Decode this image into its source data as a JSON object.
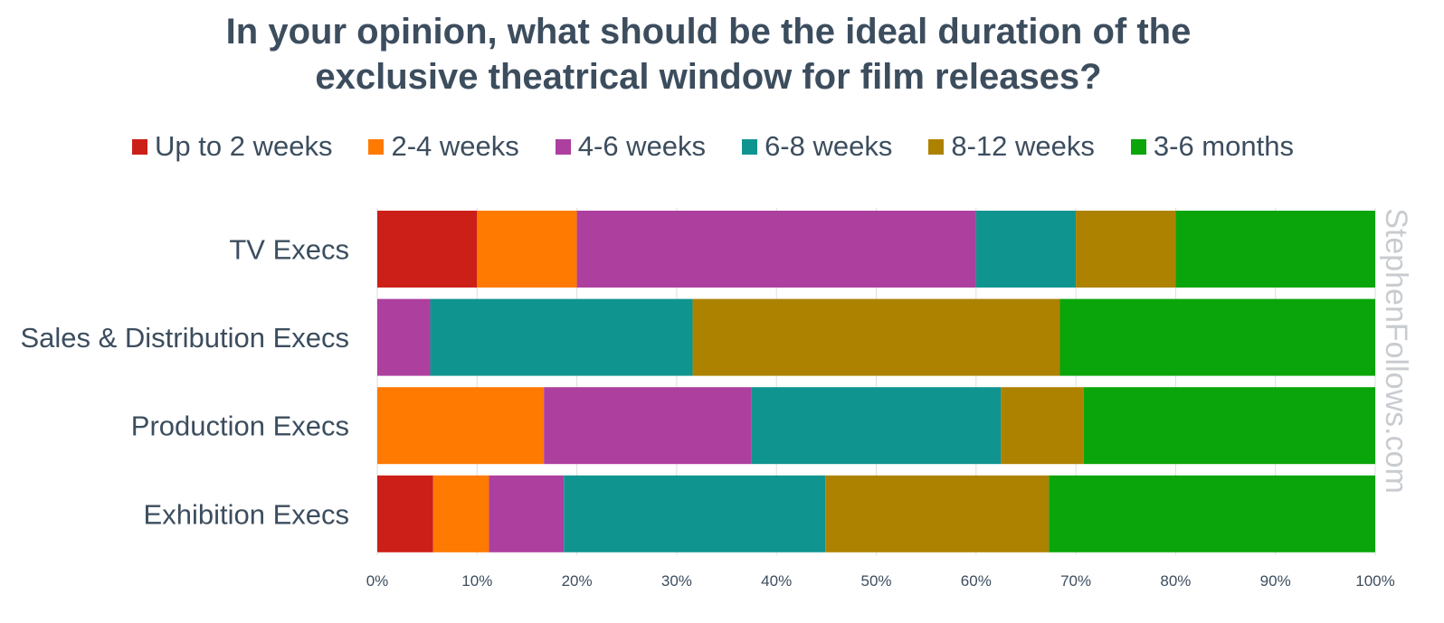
{
  "chart_data": {
    "type": "bar",
    "orientation": "horizontal",
    "stacked": true,
    "title_lines": [
      "In your opinion, what should be the ideal duration of the",
      "exclusive theatrical window for film releases?"
    ],
    "categories": [
      "TV Execs",
      "Sales & Distribution Execs",
      "Production Execs",
      "Exhibition Execs"
    ],
    "series": [
      {
        "name": "Up to 2 weeks",
        "color": "#cc1f18",
        "values": [
          10,
          0,
          0,
          5.6
        ]
      },
      {
        "name": "2-4 weeks",
        "color": "#ff7a00",
        "values": [
          10,
          0,
          16.7,
          5.6
        ]
      },
      {
        "name": "4-6 weeks",
        "color": "#ad3f9e",
        "values": [
          40,
          5.3,
          20.8,
          7.5
        ]
      },
      {
        "name": "6-8 weeks",
        "color": "#10948f",
        "values": [
          10,
          26.3,
          25,
          26.2
        ]
      },
      {
        "name": "8-12 weeks",
        "color": "#ad8200",
        "values": [
          10,
          36.8,
          8.3,
          22.4
        ]
      },
      {
        "name": "3-6 months",
        "color": "#0aa50a",
        "values": [
          20,
          31.6,
          29.2,
          32.7
        ]
      }
    ],
    "x_ticks": [
      "0%",
      "10%",
      "20%",
      "30%",
      "40%",
      "50%",
      "60%",
      "70%",
      "80%",
      "90%",
      "100%"
    ],
    "xlim": [
      0,
      100
    ],
    "grid": true,
    "legend_position": "top"
  },
  "watermark": "StephenFollows.com"
}
